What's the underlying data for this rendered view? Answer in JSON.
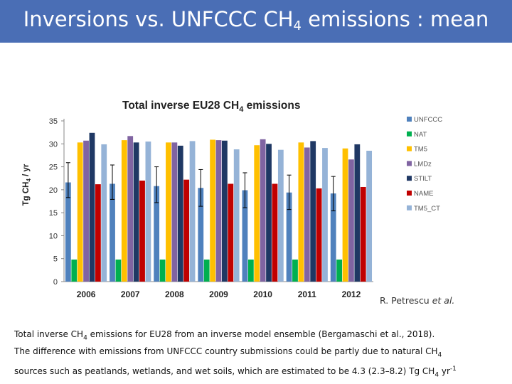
{
  "slide": {
    "title_main": "Inversions vs. UNFCCC CH",
    "title_sub": "4",
    "title_tail": " emissions : mean"
  },
  "citation": {
    "author": "R. Petrescu ",
    "etal": "et al."
  },
  "caption": {
    "p1_a": "Total inverse CH",
    "p1_sub": "4",
    "p1_b": " emissions for EU28 from an inverse model ensemble (Bergamaschi et al., 2018).",
    "p2_a": "The difference with emissions from UNFCCC country submissions could be partly due to natural CH",
    "p2_sub": "4",
    "p3_a": "sources such as peatlands, wetlands, and wet soils, which are estimated to be 4.3 (2.3–8.2) Tg CH",
    "p3_sub": "4",
    "p3_b": " yr",
    "p3_sup": "-1"
  },
  "chart_data": {
    "type": "bar",
    "title": "Total inverse EU28 CH",
    "title_sub": "4",
    "title_tail": " emissions",
    "ylabel": "Tg CH",
    "ylabel_sub": "4",
    "ylabel_tail": " / yr",
    "ylim": [
      0,
      35
    ],
    "yticks": [
      0,
      5,
      10,
      15,
      20,
      25,
      30,
      35
    ],
    "grid": false,
    "legend_position": "right",
    "categories": [
      "2006",
      "2007",
      "2008",
      "2009",
      "2010",
      "2011",
      "2012"
    ],
    "series": [
      {
        "name": "UNFCCC",
        "color": "#4f81bd",
        "values": [
          21.6,
          21.3,
          20.8,
          20.4,
          19.9,
          19.4,
          19.2
        ],
        "err_low": [
          18.3,
          17.9,
          17.2,
          16.4,
          16.1,
          15.7,
          15.4
        ],
        "err_high": [
          25.9,
          25.4,
          25.0,
          24.4,
          23.7,
          23.2,
          22.9
        ]
      },
      {
        "name": "NAT",
        "color": "#00b050",
        "values": [
          4.8,
          4.8,
          4.8,
          4.8,
          4.8,
          4.8,
          4.8
        ]
      },
      {
        "name": "TM5",
        "color": "#ffc000",
        "values": [
          30.3,
          30.8,
          30.3,
          30.9,
          29.7,
          30.3,
          29.0
        ]
      },
      {
        "name": "LMDz",
        "color": "#8064a2",
        "values": [
          30.7,
          31.7,
          30.3,
          30.8,
          31.0,
          29.2,
          26.6
        ]
      },
      {
        "name": "STILT",
        "color": "#1f3864",
        "values": [
          32.4,
          30.3,
          29.6,
          30.7,
          30.0,
          30.6,
          29.9
        ]
      },
      {
        "name": "NAME",
        "color": "#c00000",
        "values": [
          21.2,
          22.0,
          22.2,
          21.3,
          21.3,
          20.3,
          20.6
        ]
      },
      {
        "name": "TM5_CT",
        "color": "#95b3d7",
        "values": [
          29.9,
          30.5,
          30.6,
          28.8,
          28.7,
          29.1,
          28.5
        ]
      }
    ]
  }
}
